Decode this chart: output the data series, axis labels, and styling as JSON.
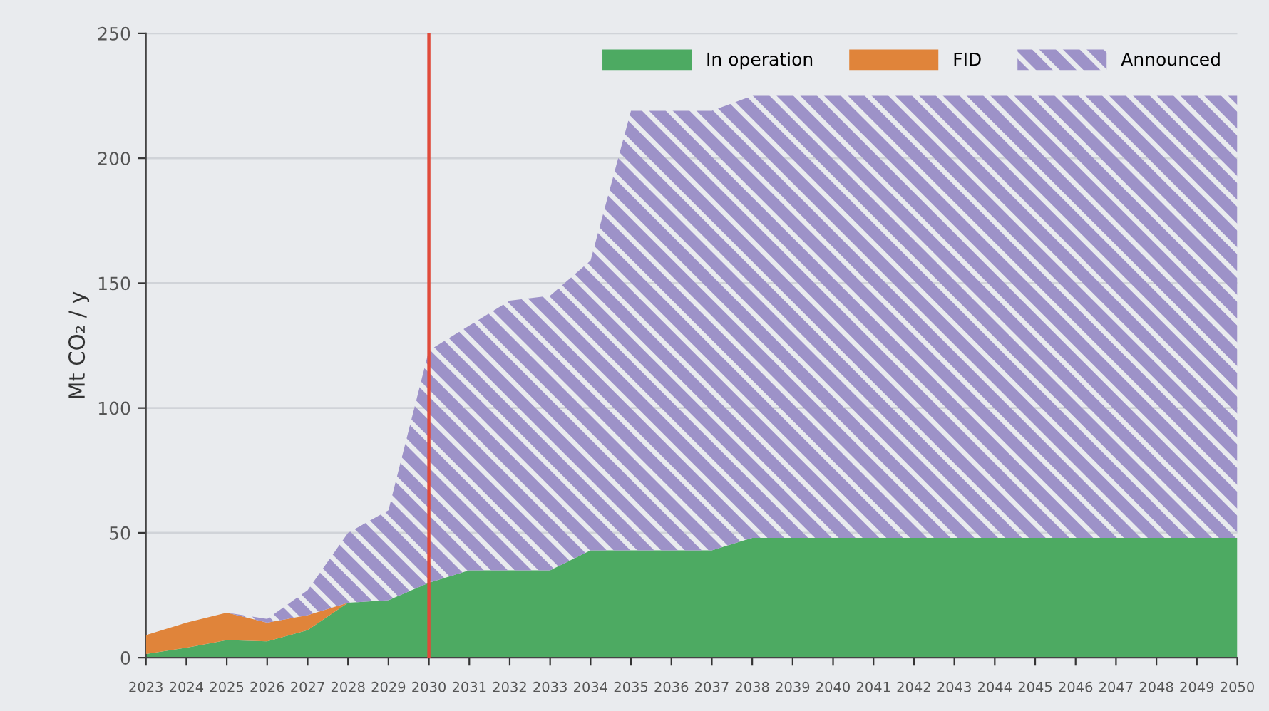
{
  "chart_data": {
    "type": "area",
    "stacked": true,
    "ylabel": "Mt CO₂ / y",
    "x": [
      2023,
      2024,
      2025,
      2026,
      2027,
      2028,
      2029,
      2030,
      2031,
      2032,
      2033,
      2034,
      2035,
      2036,
      2037,
      2038,
      2039,
      2040,
      2041,
      2042,
      2043,
      2044,
      2045,
      2046,
      2047,
      2048,
      2049,
      2050
    ],
    "series": [
      {
        "name": "In operation",
        "color": "#4daa62",
        "values": [
          1.5,
          4,
          7,
          6.5,
          11,
          22,
          23,
          30,
          35,
          35,
          35,
          43,
          43,
          43,
          43,
          48,
          48,
          48,
          48,
          48,
          48,
          48,
          48,
          48,
          48,
          48,
          48,
          48
        ]
      },
      {
        "name": "FID",
        "color": "#e0843a",
        "values": [
          7.5,
          10,
          11,
          7.5,
          6,
          0,
          0,
          0,
          0,
          0,
          0,
          0,
          0,
          0,
          0,
          0,
          0,
          0,
          0,
          0,
          0,
          0,
          0,
          0,
          0,
          0,
          0,
          0
        ]
      },
      {
        "name": "Announced",
        "color": "#9d92c8",
        "values": [
          0,
          0,
          0,
          1.5,
          10,
          28,
          36,
          93,
          98,
          108,
          110,
          116,
          176,
          176,
          176,
          177,
          177,
          177,
          177,
          177,
          177,
          177,
          177,
          177,
          177,
          177,
          177,
          177
        ]
      }
    ],
    "xlim": [
      2023,
      2050
    ],
    "xticks": [
      2023,
      2024,
      2025,
      2026,
      2027,
      2028,
      2029,
      2030,
      2031,
      2032,
      2033,
      2034,
      2035,
      2036,
      2037,
      2038,
      2039,
      2040,
      2041,
      2042,
      2043,
      2044,
      2045,
      2046,
      2047,
      2048,
      2049,
      2050
    ],
    "ylim": [
      0,
      250
    ],
    "yticks": [
      0,
      50,
      100,
      150,
      200,
      250
    ],
    "ref_lines": [
      {
        "axis": "x",
        "value": 2030,
        "label": null,
        "color": "#e04a3a"
      }
    ],
    "grid": "y",
    "legend": "top right"
  }
}
